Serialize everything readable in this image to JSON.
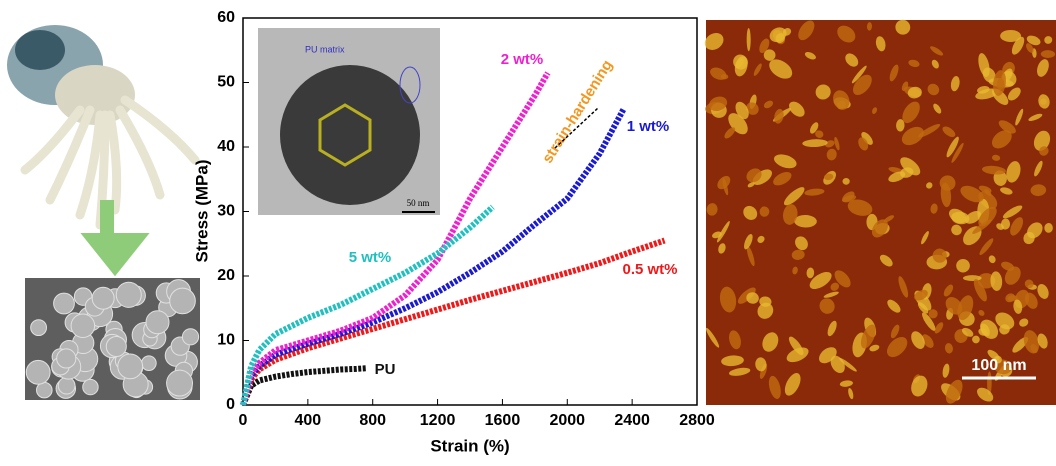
{
  "chart_data": {
    "type": "line",
    "xlabel": "Strain (%)",
    "ylabel": "Stress (MPa)",
    "xlim": [
      0,
      2800
    ],
    "xticks": [
      0,
      400,
      800,
      1200,
      1600,
      2000,
      2400,
      2800
    ],
    "ylim": [
      0,
      60
    ],
    "yticks": [
      0,
      10,
      20,
      30,
      40,
      50,
      60
    ],
    "grid": false,
    "annotations": [
      "strain-hardening"
    ],
    "series": [
      {
        "name": "PU",
        "color": "#111111",
        "x": [
          0,
          50,
          100,
          200,
          300,
          400,
          500,
          600,
          700,
          760
        ],
        "values": [
          0,
          3,
          3.8,
          4.4,
          4.8,
          5.1,
          5.3,
          5.5,
          5.6,
          5.7
        ]
      },
      {
        "name": "0.5 wt%",
        "color": "#f01818",
        "x": [
          0,
          50,
          100,
          200,
          400,
          600,
          800,
          1000,
          1200,
          1400,
          1600,
          1800,
          2000,
          2200,
          2400,
          2600
        ],
        "values": [
          0,
          4,
          5.5,
          7,
          8.8,
          10.3,
          11.8,
          13.3,
          14.8,
          16.3,
          17.7,
          19.1,
          20.5,
          22,
          23.8,
          25.5
        ]
      },
      {
        "name": "1 wt%",
        "color": "#1a1ad0",
        "x": [
          0,
          50,
          100,
          200,
          400,
          600,
          800,
          1000,
          1200,
          1400,
          1600,
          1800,
          2000,
          2200,
          2350
        ],
        "values": [
          0,
          4.5,
          6,
          7.8,
          9.5,
          11,
          12.8,
          15,
          17.5,
          20.5,
          23.8,
          28,
          32,
          39,
          46
        ]
      },
      {
        "name": "2 wt%",
        "color": "#f020d0",
        "x": [
          0,
          50,
          100,
          200,
          400,
          600,
          800,
          1000,
          1200,
          1400,
          1600,
          1800,
          1880
        ],
        "values": [
          0,
          5,
          6.5,
          8.5,
          10,
          11.5,
          13.5,
          17,
          22.5,
          32,
          40,
          48,
          51.5
        ]
      },
      {
        "name": "5 wt%",
        "color": "#20c0c0",
        "x": [
          0,
          50,
          100,
          200,
          400,
          600,
          800,
          1000,
          1200,
          1400,
          1540
        ],
        "values": [
          0,
          6,
          8.5,
          11,
          13.5,
          15.5,
          18,
          20.5,
          23.5,
          27.5,
          30.7
        ]
      }
    ]
  },
  "panels": {
    "inset_labels": [
      "PU matrix",
      "50 nm"
    ],
    "afm_scale_bar": "100 nm"
  }
}
